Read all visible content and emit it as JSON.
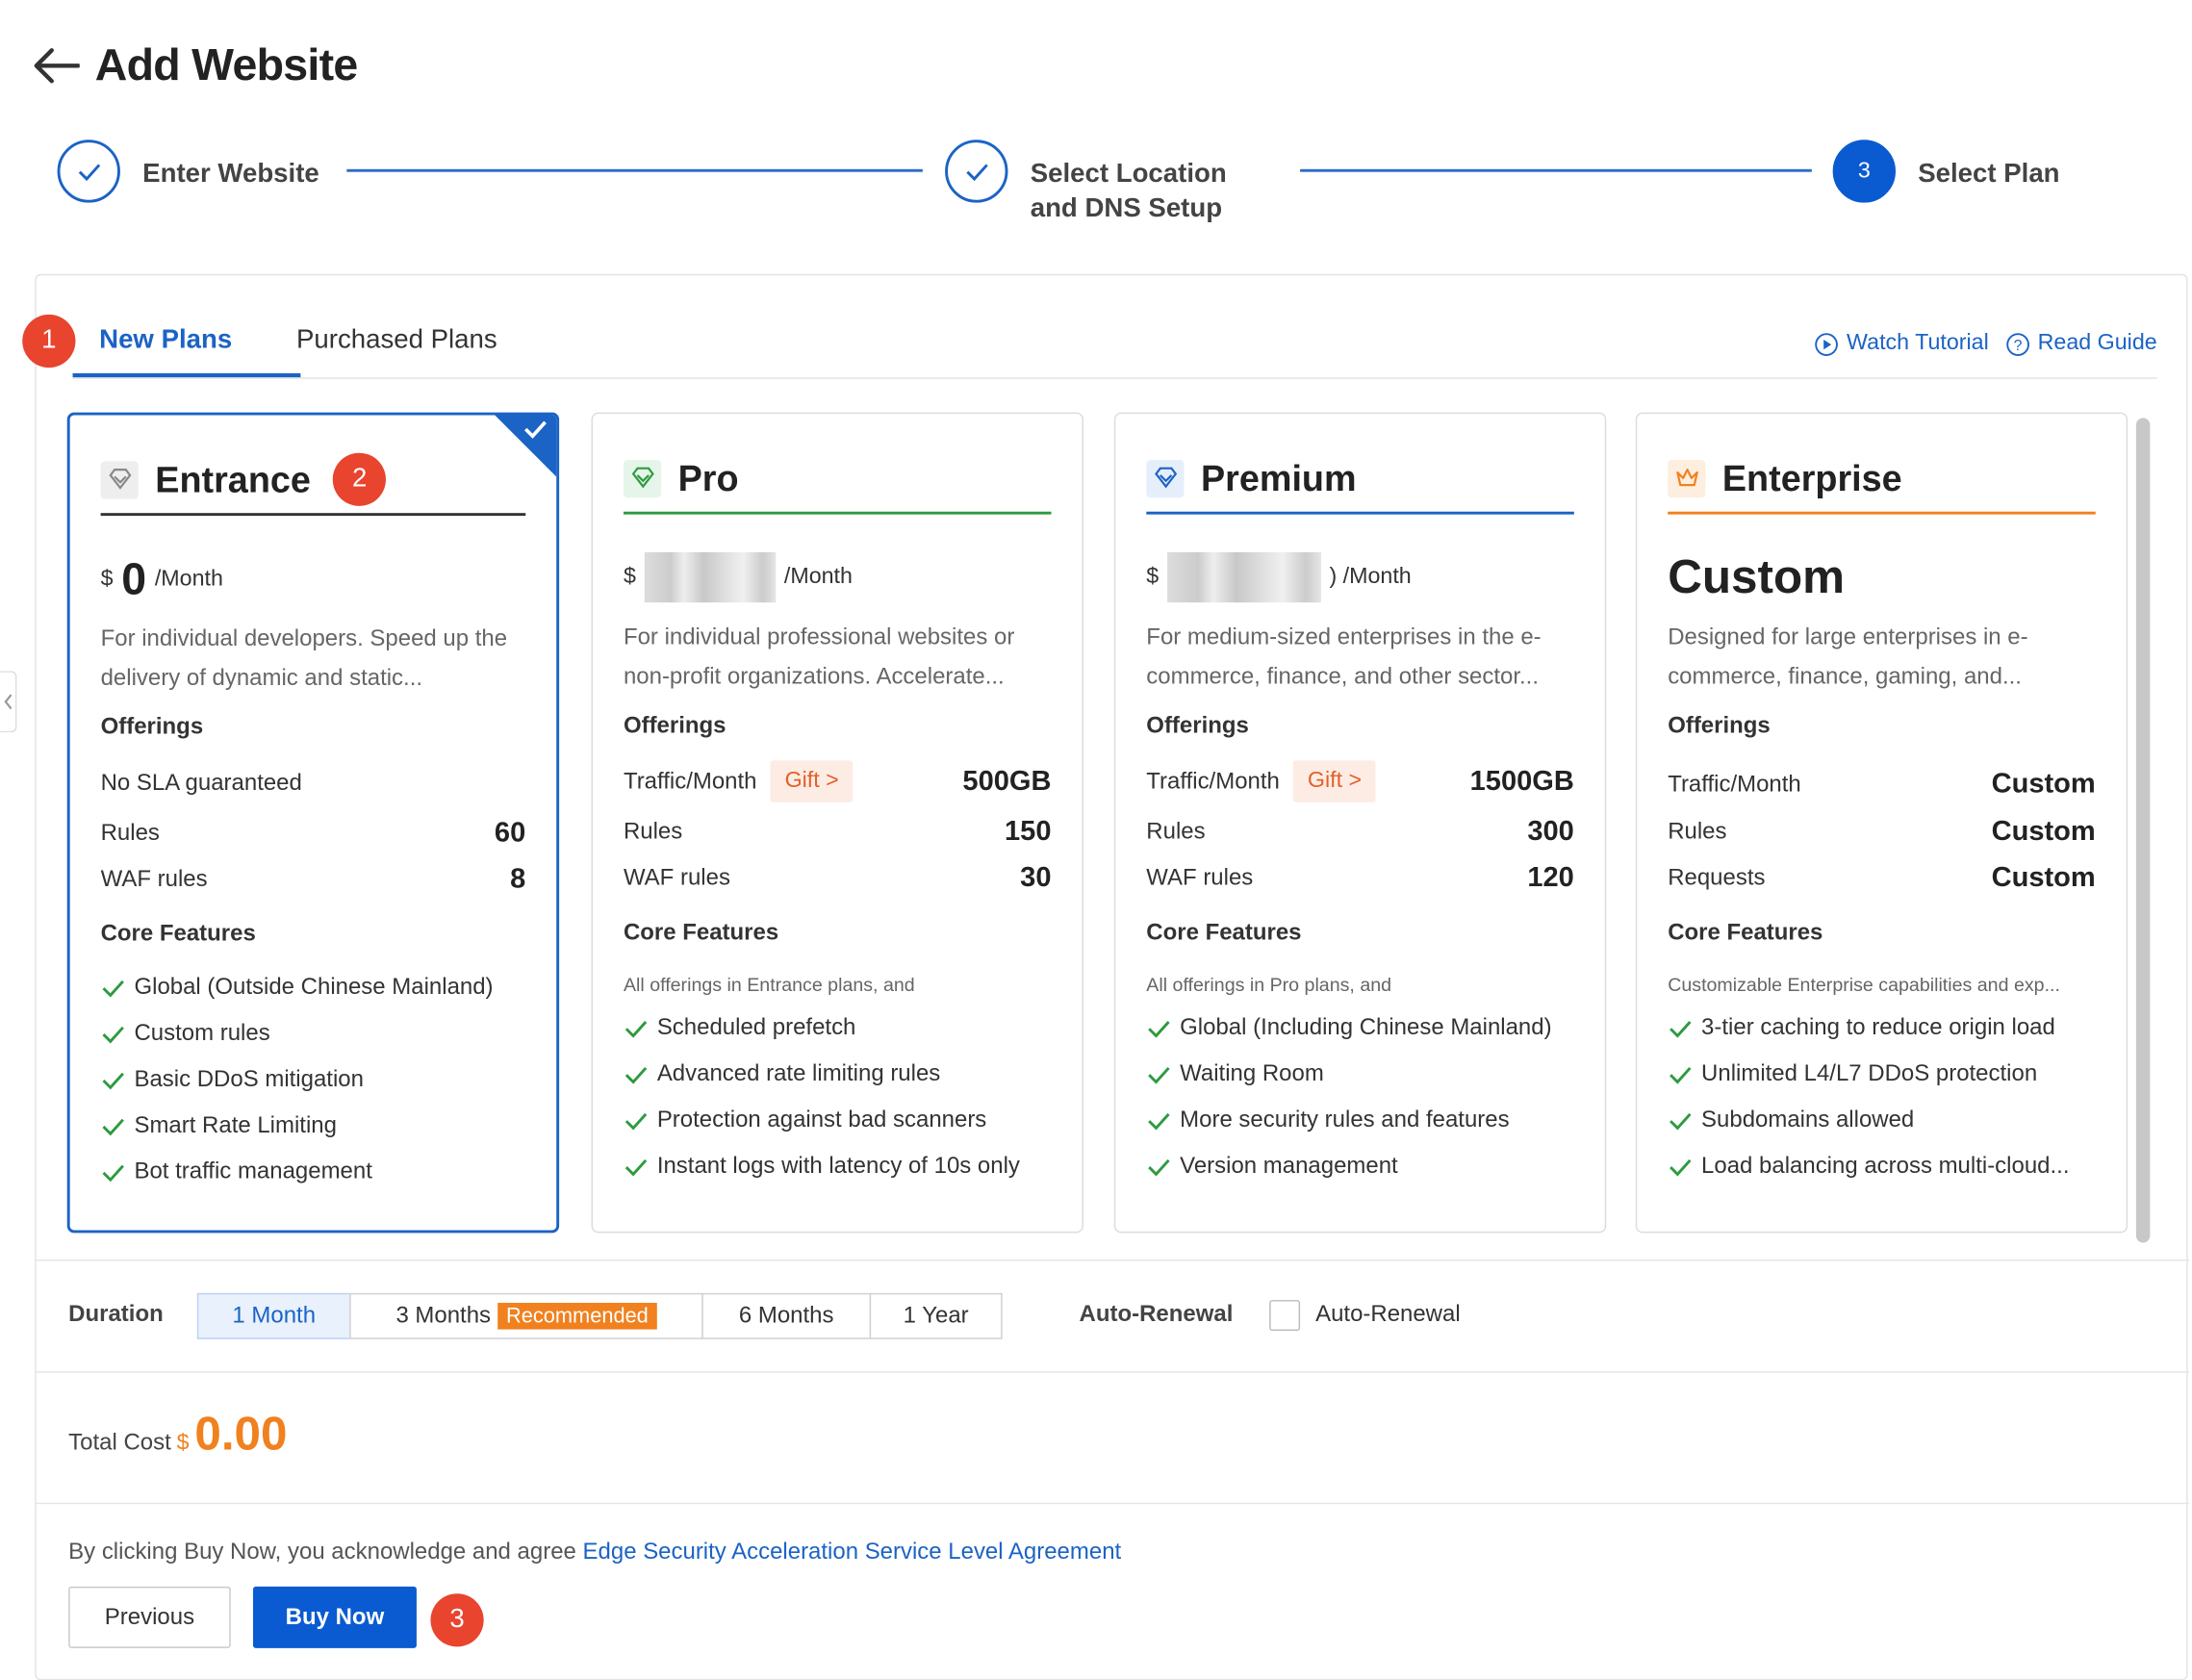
{
  "page": {
    "title": "Add Website",
    "back_icon": "arrow-left-icon"
  },
  "steps": [
    {
      "label_line1": "Enter Website",
      "label_line2": "",
      "status": "done"
    },
    {
      "label_line1": "Select Location",
      "label_line2": "and DNS Setup",
      "status": "done"
    },
    {
      "number": "3",
      "label_line1": "Select Plan",
      "label_line2": "",
      "status": "active"
    }
  ],
  "tabs": {
    "new_plans": "New Plans",
    "purchased_plans": "Purchased Plans",
    "watch_tutorial": "Watch Tutorial",
    "read_guide": "Read Guide"
  },
  "badges": {
    "b1": "1",
    "b2": "2",
    "b3": "3"
  },
  "plans": [
    {
      "name": "Entrance",
      "icon": "diamond-icon",
      "currency": "$",
      "price": "0",
      "per": "/Month",
      "description": "For individual developers. Speed up the delivery of dynamic and static...",
      "offerings_label": "Offerings",
      "offerings": [
        {
          "key": "No SLA guaranteed",
          "value": ""
        },
        {
          "key": "Rules",
          "value": "60"
        },
        {
          "key": "WAF rules",
          "value": "8"
        }
      ],
      "core_label": "Core Features",
      "note": "",
      "features": [
        "Global (Outside Chinese Mainland)",
        "Custom rules",
        "Basic DDoS mitigation",
        "Smart Rate Limiting",
        "Bot traffic management"
      ]
    },
    {
      "name": "Pro",
      "icon": "diamond-icon",
      "currency": "$",
      "price": "",
      "per": "/Month",
      "description": "For individual professional websites or non-profit organizations. Accelerate...",
      "offerings_label": "Offerings",
      "offerings": [
        {
          "key": "Traffic/Month",
          "gift": "Gift >",
          "value": "500GB"
        },
        {
          "key": "Rules",
          "value": "150"
        },
        {
          "key": "WAF rules",
          "value": "30"
        }
      ],
      "core_label": "Core Features",
      "note": "All offerings in Entrance plans, and",
      "features": [
        "Scheduled prefetch",
        "Advanced rate limiting rules",
        "Protection against bad scanners",
        "Instant logs with latency of 10s only"
      ]
    },
    {
      "name": "Premium",
      "icon": "diamond-icon",
      "currency": "$",
      "price": "",
      "per": ") /Month",
      "description": "For medium-sized enterprises in the e-commerce, finance, and other sector...",
      "offerings_label": "Offerings",
      "offerings": [
        {
          "key": "Traffic/Month",
          "gift": "Gift >",
          "value": "1500GB"
        },
        {
          "key": "Rules",
          "value": "300"
        },
        {
          "key": "WAF rules",
          "value": "120"
        }
      ],
      "core_label": "Core Features",
      "note": "All offerings in Pro plans, and",
      "features": [
        "Global (Including Chinese Mainland)",
        "Waiting Room",
        "More security rules and features",
        "Version management"
      ]
    },
    {
      "name": "Enterprise",
      "icon": "crown-icon",
      "custom_price": "Custom",
      "description": "Designed for large enterprises in e-commerce, finance, gaming, and...",
      "offerings_label": "Offerings",
      "offerings": [
        {
          "key": "Traffic/Month",
          "value": "Custom"
        },
        {
          "key": "Rules",
          "value": "Custom"
        },
        {
          "key": "Requests",
          "value": "Custom"
        }
      ],
      "core_label": "Core Features",
      "note": "Customizable Enterprise capabilities and exp...",
      "features": [
        "3-tier caching to reduce origin load",
        "Unlimited L4/L7 DDoS protection",
        "Subdomains allowed",
        "Load balancing across multi-cloud..."
      ]
    }
  ],
  "duration": {
    "label": "Duration",
    "options": [
      "1 Month",
      "3 Months",
      "6 Months",
      "1 Year"
    ],
    "recommended": "Recommended",
    "selected": "1 Month"
  },
  "auto_renewal": {
    "label": "Auto-Renewal",
    "checkbox_label": "Auto-Renewal",
    "checked": false
  },
  "total": {
    "label": "Total Cost",
    "currency": "$",
    "value": "0.00"
  },
  "agreement": {
    "prefix": "By clicking Buy Now, you acknowledge and agree",
    "link": "Edge Security Acceleration Service Level Agreement"
  },
  "buttons": {
    "previous": "Previous",
    "buy_now": "Buy Now"
  },
  "colors": {
    "accent": "#1b63c5",
    "badge": "#e8442e",
    "price": "#f0811e",
    "check": "#2e9a3f"
  }
}
